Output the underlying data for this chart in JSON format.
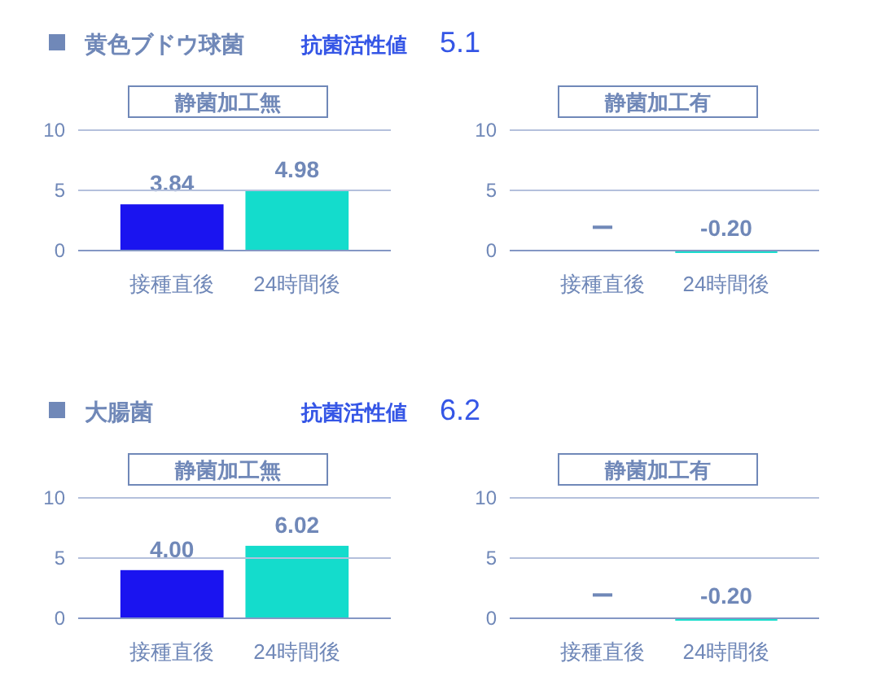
{
  "chart_data": [
    {
      "type": "bar",
      "title": "静菌加工無",
      "annotations": [
        "黄色ブドウ球菌",
        "抗菌活性値",
        "5.1"
      ],
      "categories": [
        "接種直後",
        "24時間後"
      ],
      "values": [
        3.84,
        4.98
      ],
      "colors": [
        "#1a14f0",
        "#14dccc"
      ],
      "value_labels": [
        "3.84",
        "4.98"
      ],
      "ylim": [
        0,
        10
      ],
      "yticks": [
        0,
        5,
        10
      ],
      "grid": "y"
    },
    {
      "type": "bar",
      "title": "静菌加工有",
      "categories": [
        "接種直後",
        "24時間後"
      ],
      "values": [
        null,
        -0.2
      ],
      "colors": [
        "#1a14f0",
        "#14dccc"
      ],
      "value_labels": [
        "ー",
        "-0.20"
      ],
      "ylim": [
        -0.2,
        10
      ],
      "yticks": [
        0,
        5,
        10
      ],
      "grid": "y"
    },
    {
      "type": "bar",
      "title": "静菌加工無",
      "annotations": [
        "大腸菌",
        "抗菌活性値",
        "6.2"
      ],
      "categories": [
        "接種直後",
        "24時間後"
      ],
      "values": [
        4.0,
        6.02
      ],
      "colors": [
        "#1a14f0",
        "#14dccc"
      ],
      "value_labels": [
        "4.00",
        "6.02"
      ],
      "ylim": [
        0,
        10
      ],
      "yticks": [
        0,
        5,
        10
      ],
      "grid": "y"
    },
    {
      "type": "bar",
      "title": "静菌加工有",
      "categories": [
        "接種直後",
        "24時間後"
      ],
      "values": [
        null,
        -0.2
      ],
      "colors": [
        "#1a14f0",
        "#14dccc"
      ],
      "value_labels": [
        "ー",
        "-0.20"
      ],
      "ylim": [
        -0.2,
        10
      ],
      "yticks": [
        0,
        5,
        10
      ],
      "grid": "y"
    }
  ]
}
